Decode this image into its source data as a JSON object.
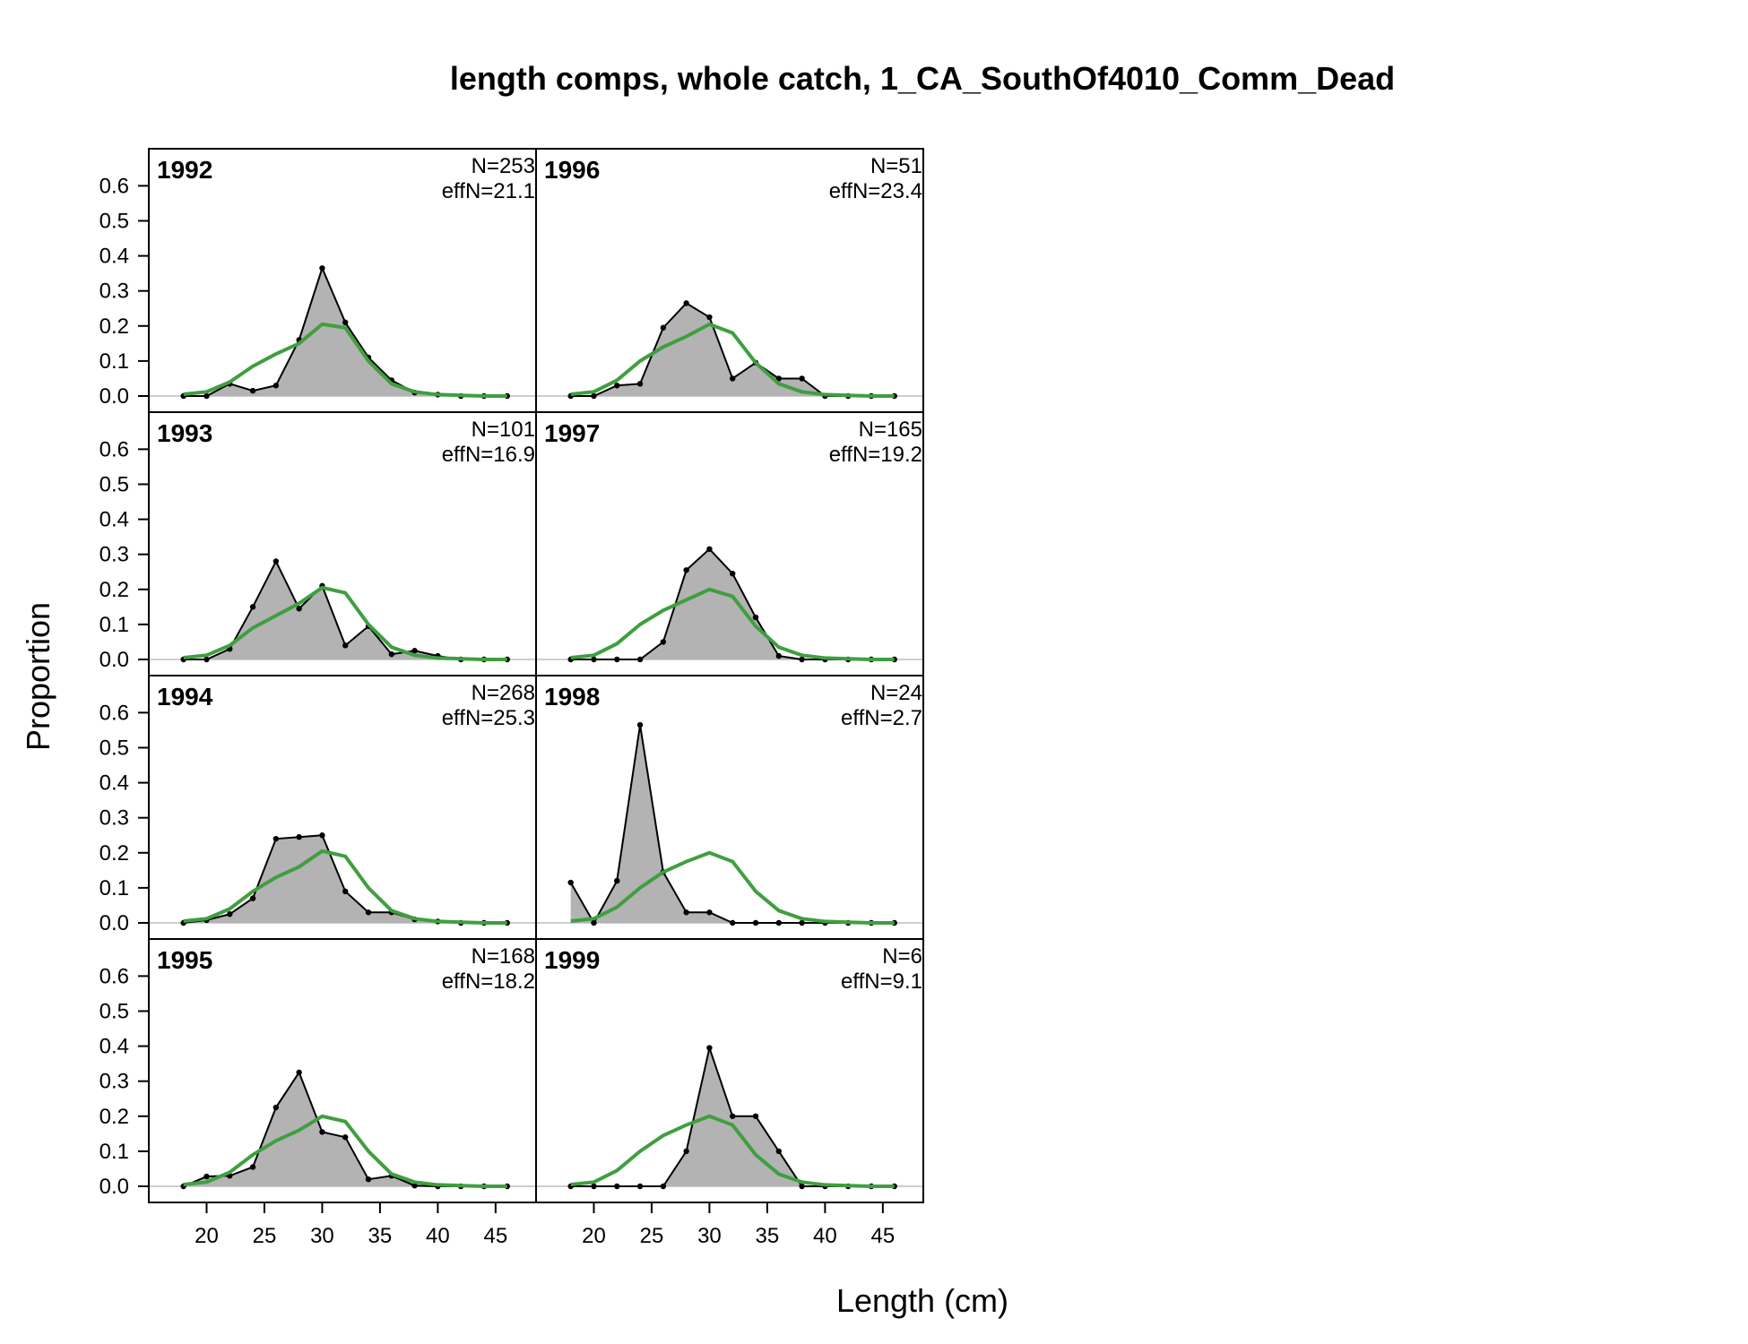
{
  "chart_data": {
    "type": "area",
    "title": "length comps, whole catch, 1_CA_SouthOf4010_Comm_Dead",
    "xlabel": "Length (cm)",
    "ylabel": "Proportion",
    "xlim": [
      15,
      48.5
    ],
    "ylim": [
      0,
      0.67
    ],
    "x_ticks": [
      20,
      25,
      30,
      35,
      40,
      45
    ],
    "y_ticks": [
      0.0,
      0.1,
      0.2,
      0.3,
      0.4,
      0.5,
      0.6
    ],
    "y_tick_labels": [
      "0.0",
      "0.1",
      "0.2",
      "0.3",
      "0.4",
      "0.5",
      "0.6"
    ],
    "x_tick_labels": [
      "20",
      "25",
      "30",
      "35",
      "40",
      "45"
    ],
    "grid": false,
    "layout": "4 rows x 2 columns, columns filled first",
    "observed_color": "#b3b3b3",
    "observed_line_color": "#000000",
    "expected_color": "#3f9f3f",
    "length_bins": [
      18,
      20,
      22,
      24,
      26,
      28,
      30,
      32,
      34,
      36,
      38,
      40,
      42,
      44,
      46
    ],
    "panels": [
      {
        "year": "1992",
        "n_label": "N=253",
        "effn_label": "effN=21.1",
        "observed": [
          0.0,
          0.0,
          0.035,
          0.015,
          0.03,
          0.16,
          0.365,
          0.21,
          0.11,
          0.045,
          0.01,
          0.004,
          0.0,
          0.0,
          0.0
        ],
        "expected": [
          0.005,
          0.012,
          0.04,
          0.085,
          0.12,
          0.15,
          0.205,
          0.195,
          0.1,
          0.035,
          0.012,
          0.004,
          0.002,
          0.0,
          0.0
        ]
      },
      {
        "year": "1993",
        "n_label": "N=101",
        "effn_label": "effN=16.9",
        "observed": [
          0.0,
          0.0,
          0.03,
          0.15,
          0.28,
          0.145,
          0.21,
          0.04,
          0.095,
          0.015,
          0.025,
          0.01,
          0.0,
          0.0,
          0.0
        ],
        "expected": [
          0.005,
          0.012,
          0.04,
          0.09,
          0.125,
          0.16,
          0.205,
          0.19,
          0.1,
          0.035,
          0.012,
          0.004,
          0.002,
          0.0,
          0.0
        ]
      },
      {
        "year": "1994",
        "n_label": "N=268",
        "effn_label": "effN=25.3",
        "observed": [
          0.0,
          0.008,
          0.025,
          0.07,
          0.24,
          0.245,
          0.25,
          0.09,
          0.03,
          0.03,
          0.01,
          0.004,
          0.0,
          0.0,
          0.0
        ],
        "expected": [
          0.005,
          0.012,
          0.04,
          0.09,
          0.13,
          0.16,
          0.205,
          0.19,
          0.1,
          0.035,
          0.012,
          0.004,
          0.002,
          0.0,
          0.0
        ]
      },
      {
        "year": "1995",
        "n_label": "N=168",
        "effn_label": "effN=18.2",
        "observed": [
          0.0,
          0.028,
          0.03,
          0.055,
          0.225,
          0.325,
          0.155,
          0.14,
          0.02,
          0.03,
          0.002,
          0.0,
          0.0,
          0.0,
          0.0
        ],
        "expected": [
          0.005,
          0.012,
          0.04,
          0.09,
          0.13,
          0.16,
          0.2,
          0.185,
          0.1,
          0.035,
          0.012,
          0.004,
          0.002,
          0.0,
          0.0
        ]
      },
      {
        "year": "1996",
        "n_label": "N=51",
        "effn_label": "effN=23.4",
        "observed": [
          0.0,
          0.0,
          0.03,
          0.035,
          0.195,
          0.265,
          0.225,
          0.05,
          0.095,
          0.05,
          0.05,
          0.0,
          0.0,
          0.0,
          0.0
        ],
        "expected": [
          0.005,
          0.012,
          0.045,
          0.1,
          0.14,
          0.17,
          0.205,
          0.18,
          0.095,
          0.035,
          0.012,
          0.004,
          0.002,
          0.0,
          0.0
        ]
      },
      {
        "year": "1997",
        "n_label": "N=165",
        "effn_label": "effN=19.2",
        "observed": [
          0.0,
          0.0,
          0.0,
          0.0,
          0.05,
          0.255,
          0.315,
          0.245,
          0.12,
          0.01,
          0.0,
          0.0,
          0.0,
          0.0,
          0.0
        ],
        "expected": [
          0.005,
          0.012,
          0.045,
          0.1,
          0.14,
          0.17,
          0.2,
          0.18,
          0.095,
          0.035,
          0.012,
          0.004,
          0.002,
          0.0,
          0.0
        ]
      },
      {
        "year": "1998",
        "n_label": "N=24",
        "effn_label": "effN=2.7",
        "observed": [
          0.115,
          0.0,
          0.12,
          0.565,
          0.145,
          0.03,
          0.03,
          0.0,
          0.0,
          0.0,
          0.0,
          0.0,
          0.0,
          0.0,
          0.0
        ],
        "expected": [
          0.005,
          0.012,
          0.045,
          0.1,
          0.145,
          0.175,
          0.2,
          0.175,
          0.09,
          0.035,
          0.012,
          0.004,
          0.002,
          0.0,
          0.0
        ]
      },
      {
        "year": "1999",
        "n_label": "N=6",
        "effn_label": "effN=9.1",
        "observed": [
          0.0,
          0.0,
          0.0,
          0.0,
          0.0,
          0.1,
          0.395,
          0.2,
          0.2,
          0.1,
          0.0,
          0.0,
          0.0,
          0.0,
          0.0
        ],
        "expected": [
          0.005,
          0.012,
          0.045,
          0.1,
          0.145,
          0.175,
          0.2,
          0.175,
          0.09,
          0.035,
          0.012,
          0.004,
          0.002,
          0.0,
          0.0
        ]
      }
    ]
  }
}
